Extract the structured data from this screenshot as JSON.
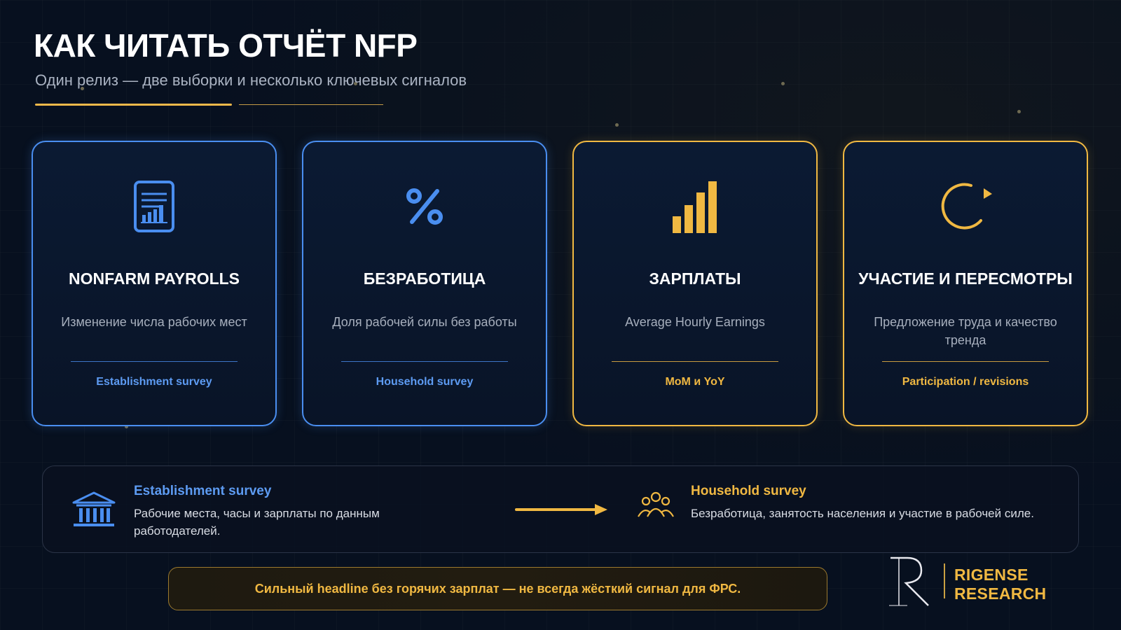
{
  "header": {
    "title": "КАК ЧИТАТЬ ОТЧЁТ NFP",
    "subtitle": "Один релиз — две выборки и несколько ключевых сигналов"
  },
  "cards": [
    {
      "icon": "report-chart-icon",
      "title": "NONFARM PAYROLLS",
      "description": "Изменение числа рабочих мест",
      "footer": "Establishment survey",
      "accent": "#4a8ef0"
    },
    {
      "icon": "percent-icon",
      "title": "БЕЗРАБОТИЦА",
      "description": "Доля рабочей силы без работы",
      "footer": "Household survey",
      "accent": "#4a8ef0"
    },
    {
      "icon": "bar-chart-icon",
      "title": "ЗАРПЛАТЫ",
      "description": "Average Hourly Earnings",
      "footer": "MoM и YoY",
      "accent": "#f0b842"
    },
    {
      "icon": "refresh-icon",
      "title": "УЧАСТИЕ И ПЕРЕСМОТРЫ",
      "description": "Предложение труда и качество тренда",
      "footer": "Participation / revisions",
      "accent": "#f0b842"
    }
  ],
  "flow": {
    "left": {
      "icon": "bank-icon",
      "title": "Establishment survey",
      "text": "Рабочие места, часы и зарплаты по данным работодателей."
    },
    "arrow_icon": "arrow-right-icon",
    "right": {
      "icon": "people-group-icon",
      "title": "Household survey",
      "text": "Безработица, занятость населения и участие в рабочей силе."
    }
  },
  "note": "Сильный headline без горячих зарплат — не всегда жёсткий сигнал для ФРС.",
  "brand": {
    "name": "RIGENSE RESEARCH",
    "logo_icon": "rigense-logo-icon"
  },
  "colors": {
    "blue": "#4a8ef0",
    "gold": "#f0b842",
    "background": "#07101f"
  }
}
